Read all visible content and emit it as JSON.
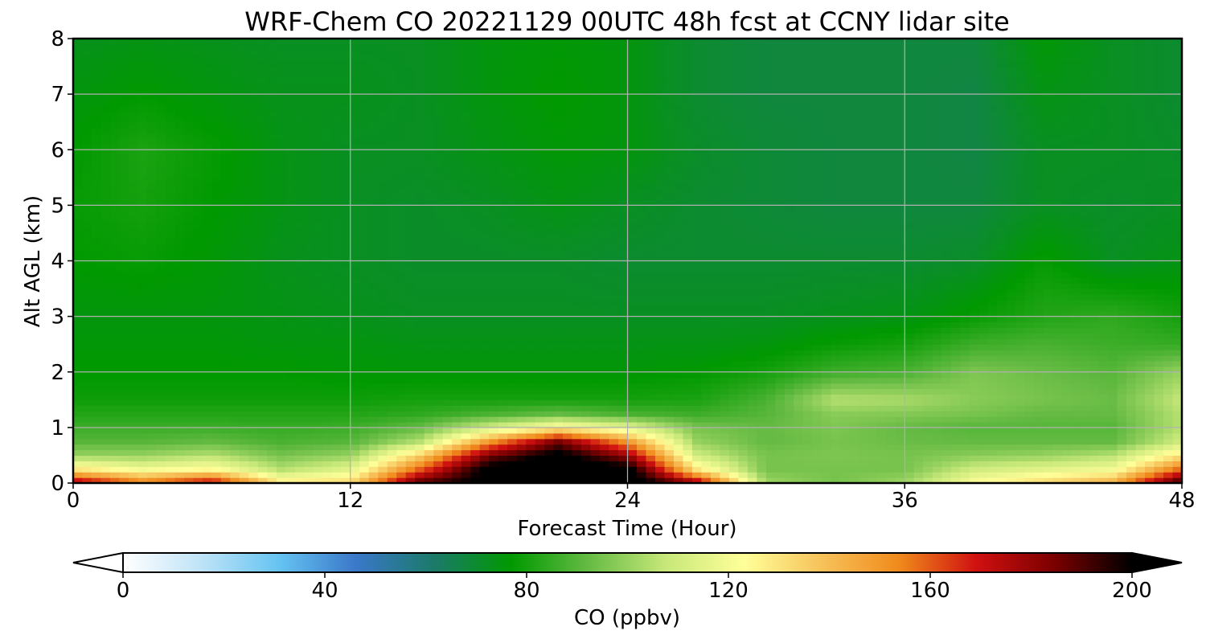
{
  "chart_data": {
    "type": "heatmap",
    "title": "WRF-Chem CO  20221129 00UTC 48h fcst at CCNY lidar site",
    "xlabel": "Forecast Time (Hour)",
    "ylabel": "Alt AGL (km)",
    "xlim": [
      0,
      48
    ],
    "ylim": [
      0,
      8
    ],
    "xticks": [
      0,
      12,
      24,
      36,
      48
    ],
    "yticks": [
      0,
      1,
      2,
      3,
      4,
      5,
      6,
      7,
      8
    ],
    "grid": true,
    "colorbar": {
      "label": "CO  (ppbv)",
      "orientation": "horizontal",
      "placement": "bottom",
      "range": [
        0,
        200
      ],
      "ticks": [
        0,
        40,
        80,
        120,
        160,
        200
      ],
      "extend": "both",
      "colors": [
        "#ffffff",
        "#bfe3f7",
        "#66c4f2",
        "#3a78c9",
        "#1b7a6a",
        "#009900",
        "#66bb44",
        "#c8e87a",
        "#ffff99",
        "#f7c25a",
        "#f08a1c",
        "#d01010",
        "#7a0000",
        "#000000"
      ]
    },
    "hours": [
      0,
      3,
      6,
      9,
      12,
      15,
      18,
      21,
      24,
      27,
      30,
      33,
      36,
      39,
      42,
      45,
      48
    ],
    "altitudes_km": [
      0.05,
      0.25,
      0.5,
      0.75,
      1.0,
      1.25,
      1.5,
      2.0,
      2.5,
      3.0,
      4.0,
      5.0,
      6.0,
      7.0,
      8.0
    ],
    "values_ppbv": [
      [
        170,
        150,
        165,
        125,
        130,
        185,
        205,
        210,
        210,
        170,
        100,
        95,
        100,
        120,
        130,
        140,
        190
      ],
      [
        130,
        120,
        125,
        105,
        115,
        160,
        205,
        210,
        205,
        130,
        95,
        95,
        95,
        110,
        115,
        120,
        160
      ],
      [
        100,
        100,
        105,
        95,
        100,
        135,
        185,
        205,
        180,
        110,
        95,
        96,
        95,
        98,
        100,
        105,
        130
      ],
      [
        90,
        90,
        92,
        88,
        90,
        105,
        150,
        185,
        150,
        100,
        92,
        95,
        93,
        92,
        92,
        92,
        110
      ],
      [
        86,
        86,
        86,
        85,
        86,
        92,
        110,
        125,
        115,
        95,
        92,
        96,
        92,
        90,
        90,
        90,
        105
      ],
      [
        82,
        82,
        82,
        82,
        82,
        84,
        88,
        92,
        88,
        86,
        90,
        98,
        97,
        95,
        92,
        92,
        105
      ],
      [
        79,
        79,
        79,
        79,
        79,
        80,
        80,
        80,
        80,
        81,
        88,
        105,
        103,
        98,
        95,
        93,
        108
      ],
      [
        77,
        77,
        77,
        77,
        76,
        76,
        76,
        76,
        76,
        77,
        80,
        86,
        88,
        96,
        93,
        90,
        100
      ],
      [
        76,
        76,
        76,
        75,
        75,
        74,
        74,
        74,
        74,
        74,
        75,
        78,
        80,
        86,
        88,
        86,
        85
      ],
      [
        75,
        75,
        75,
        74,
        73,
        72,
        72,
        72,
        72,
        72,
        72,
        73,
        74,
        78,
        82,
        84,
        80
      ],
      [
        77,
        78,
        76,
        73,
        72,
        71,
        71,
        71,
        70,
        70,
        70,
        70,
        70,
        71,
        78,
        72,
        74
      ],
      [
        78,
        80,
        77,
        74,
        72,
        71,
        72,
        74,
        72,
        70,
        69,
        68,
        68,
        68,
        72,
        71,
        72
      ],
      [
        77,
        81,
        78,
        74,
        72,
        72,
        74,
        76,
        75,
        71,
        69,
        68,
        68,
        67,
        72,
        72,
        71
      ],
      [
        75,
        77,
        75,
        73,
        73,
        72,
        75,
        77,
        75,
        70,
        68,
        68,
        68,
        67,
        74,
        72,
        70
      ],
      [
        73,
        74,
        73,
        72,
        72,
        72,
        75,
        76,
        75,
        70,
        68,
        68,
        68,
        68,
        76,
        72,
        70
      ]
    ]
  }
}
